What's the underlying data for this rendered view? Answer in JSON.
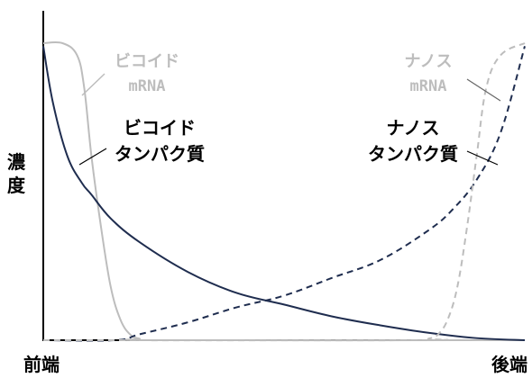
{
  "chart_data": {
    "type": "line",
    "title": "",
    "xlabel": {
      "left": "前端",
      "right": "後端"
    },
    "ylabel": "濃度",
    "xlim": [
      0,
      1
    ],
    "ylim": [
      0,
      1
    ],
    "grid": false,
    "legend": "none",
    "series": [
      {
        "name": "ビコイド mRNA",
        "color": "#bdbdbd",
        "style": "solid",
        "x": [
          0.0,
          0.04,
          0.07,
          0.085,
          0.1,
          0.12,
          0.14,
          0.16,
          0.18,
          0.2,
          0.23,
          1.0
        ],
        "y": [
          1.0,
          1.0,
          0.96,
          0.85,
          0.62,
          0.38,
          0.18,
          0.07,
          0.02,
          0.005,
          0.0,
          0.0
        ]
      },
      {
        "name": "ビコイド タンパク質",
        "color": "#1f2d4f",
        "style": "solid",
        "x": [
          0.0,
          0.02,
          0.05,
          0.08,
          0.1,
          0.14,
          0.2,
          0.3,
          0.4,
          0.5,
          0.6,
          0.7,
          0.8,
          0.9,
          1.0
        ],
        "y": [
          0.99,
          0.8,
          0.62,
          0.53,
          0.49,
          0.41,
          0.33,
          0.23,
          0.16,
          0.12,
          0.08,
          0.05,
          0.025,
          0.007,
          0.0
        ]
      },
      {
        "name": "ナノス タンパク質",
        "color": "#1f2d4f",
        "style": "dashed",
        "x": [
          0.0,
          0.15,
          0.2,
          0.3,
          0.4,
          0.5,
          0.6,
          0.7,
          0.8,
          0.85,
          0.9,
          0.95,
          1.0
        ],
        "y": [
          0.0,
          0.0,
          0.02,
          0.06,
          0.11,
          0.15,
          0.21,
          0.27,
          0.37,
          0.44,
          0.54,
          0.7,
          0.99
        ]
      },
      {
        "name": "ナノス mRNA",
        "color": "#bdbdbd",
        "style": "dashed",
        "x": [
          0.0,
          0.77,
          0.8,
          0.82,
          0.84,
          0.86,
          0.88,
          0.9,
          0.92,
          0.95,
          1.0
        ],
        "y": [
          0.0,
          0.0,
          0.005,
          0.02,
          0.07,
          0.18,
          0.38,
          0.62,
          0.85,
          0.96,
          1.0
        ]
      }
    ],
    "annotations": {
      "bicoid_mrna": [
        "ビコイド",
        "mRNA"
      ],
      "bicoid_protein": [
        "ビコイド",
        "タンパク質"
      ],
      "nanos_mrna": [
        "ナノス",
        "mRNA"
      ],
      "nanos_protein": [
        "ナノス",
        "タンパク質"
      ]
    }
  }
}
